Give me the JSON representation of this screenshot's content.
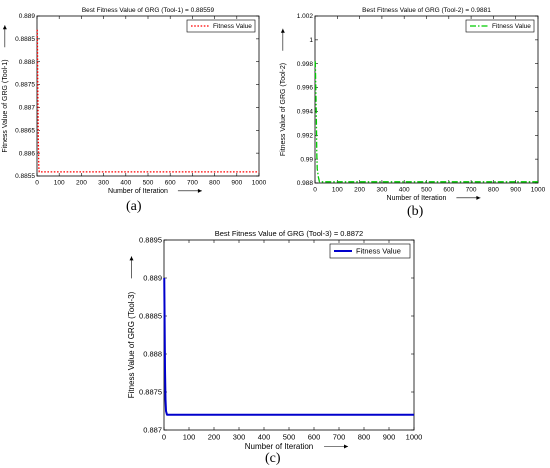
{
  "captions": [
    "(a)",
    "(b)",
    "(c)"
  ],
  "chart_data": [
    {
      "type": "line",
      "title": "Best Fitness Value of GRG (Tool-1) = 0.88559",
      "xlabel": "Number of Iteration",
      "ylabel": "Fitness Value of GRG (Tool-1)",
      "xlim": [
        0,
        1000
      ],
      "ylim": [
        0.8855,
        0.889
      ],
      "xticks": [
        "0",
        "100",
        "200",
        "300",
        "400",
        "500",
        "600",
        "700",
        "800",
        "900",
        "1000"
      ],
      "yticks": [
        "0.8855",
        "0.886",
        "0.8865",
        "0.887",
        "0.8875",
        "0.888",
        "0.8885",
        "0.889"
      ],
      "grid": false,
      "legend_position": "top-right",
      "series": [
        {
          "name": "Fitness Value",
          "color": "#ff0000",
          "style": "dotted",
          "x": [
            1,
            2,
            4,
            6,
            8,
            10,
            1000
          ],
          "y": [
            0.8887,
            0.8884,
            0.8872,
            0.8863,
            0.8857,
            0.88559,
            0.88559
          ]
        }
      ]
    },
    {
      "type": "line",
      "title": "Best Fitness Value of GRG (Tool-2) = 0.9881",
      "xlabel": "Number of Iteration",
      "ylabel": "Fitness Value of GRG (Tool-2)",
      "xlim": [
        0,
        1000
      ],
      "ylim": [
        0.988,
        1.002
      ],
      "xticks": [
        "0",
        "100",
        "200",
        "300",
        "400",
        "500",
        "600",
        "700",
        "800",
        "900",
        "1000"
      ],
      "yticks": [
        "0.988",
        "0.99",
        "0.992",
        "0.994",
        "0.996",
        "0.998",
        "1",
        "1.002"
      ],
      "grid": false,
      "legend_position": "top-right",
      "series": [
        {
          "name": "Fitness Value",
          "color": "#00cc00",
          "style": "dash-dot",
          "x": [
            1,
            2,
            4,
            6,
            8,
            10,
            15,
            20,
            1000
          ],
          "y": [
            0.9982,
            0.9975,
            0.9955,
            0.9935,
            0.9905,
            0.9892,
            0.9885,
            0.9881,
            0.9881
          ]
        }
      ]
    },
    {
      "type": "line",
      "title": "Best Fitness Value of GRG (Tool-3) = 0.8872",
      "xlabel": "Number of Iteration",
      "ylabel": "Fitness Value of GRG (Tool-3)",
      "xlim": [
        0,
        1000
      ],
      "ylim": [
        0.887,
        0.8895
      ],
      "xticks": [
        "0",
        "100",
        "200",
        "300",
        "400",
        "500",
        "600",
        "700",
        "800",
        "900",
        "1000"
      ],
      "yticks": [
        "0.887",
        "0.8875",
        "0.888",
        "0.8885",
        "0.889",
        "0.8895"
      ],
      "grid": false,
      "legend_position": "top-right",
      "series": [
        {
          "name": "Fitness Value",
          "color": "#0000cc",
          "style": "solid",
          "x": [
            1,
            2,
            4,
            6,
            8,
            12,
            20,
            1000
          ],
          "y": [
            0.889,
            0.8886,
            0.8878,
            0.8874,
            0.88725,
            0.8872,
            0.8872,
            0.8872
          ]
        }
      ]
    }
  ]
}
